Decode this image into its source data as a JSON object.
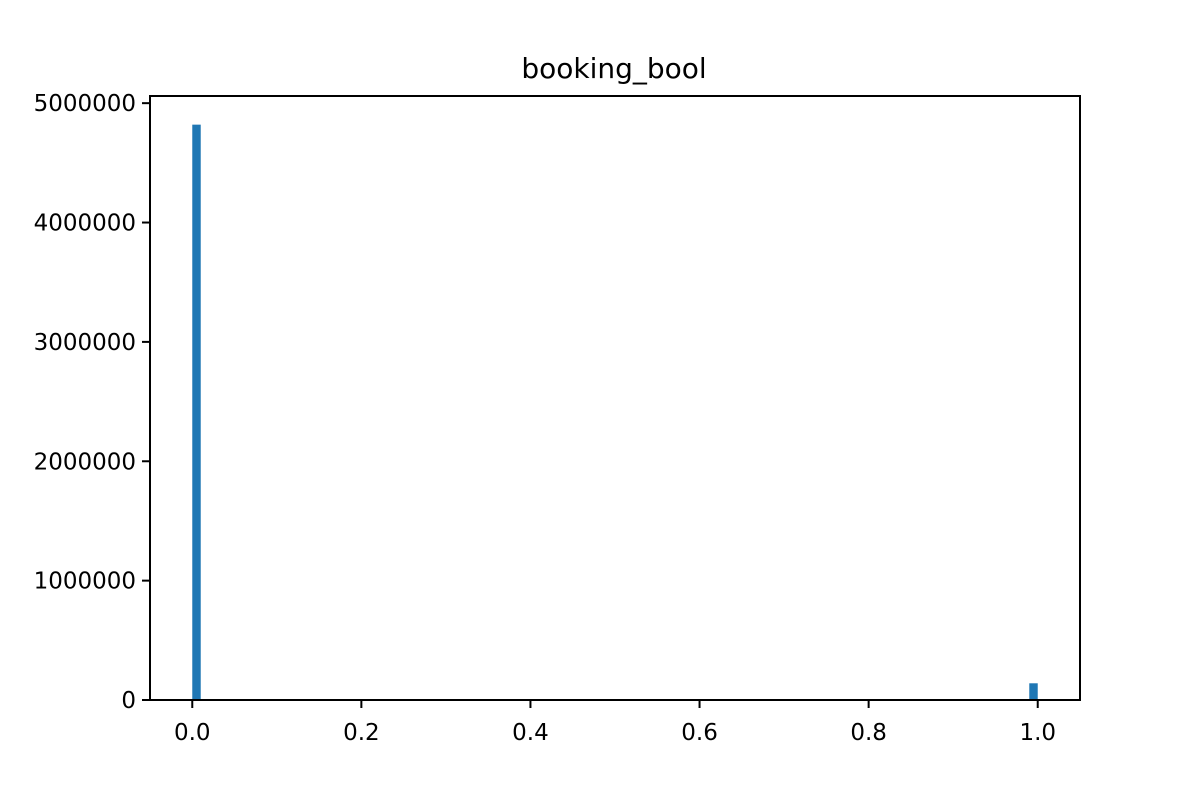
{
  "chart_data": {
    "type": "bar",
    "title": "booking_bool",
    "xlabel": "",
    "ylabel": "",
    "xlim": [
      -0.05,
      1.05
    ],
    "ylim": [
      0,
      5060000
    ],
    "xticks": [
      0.0,
      0.2,
      0.4,
      0.6,
      0.8,
      1.0
    ],
    "xtick_labels": [
      "0.0",
      "0.2",
      "0.4",
      "0.6",
      "0.8",
      "1.0"
    ],
    "yticks": [
      0,
      1000000,
      2000000,
      3000000,
      4000000,
      5000000
    ],
    "ytick_labels": [
      "0",
      "1000000",
      "2000000",
      "3000000",
      "4000000",
      "5000000"
    ],
    "bar_width": 0.01,
    "bars": [
      {
        "x": 0.0,
        "value": 4820000
      },
      {
        "x": 0.99,
        "value": 140000
      }
    ],
    "bar_color": "#1f77b4",
    "grid": false,
    "legend": false
  }
}
